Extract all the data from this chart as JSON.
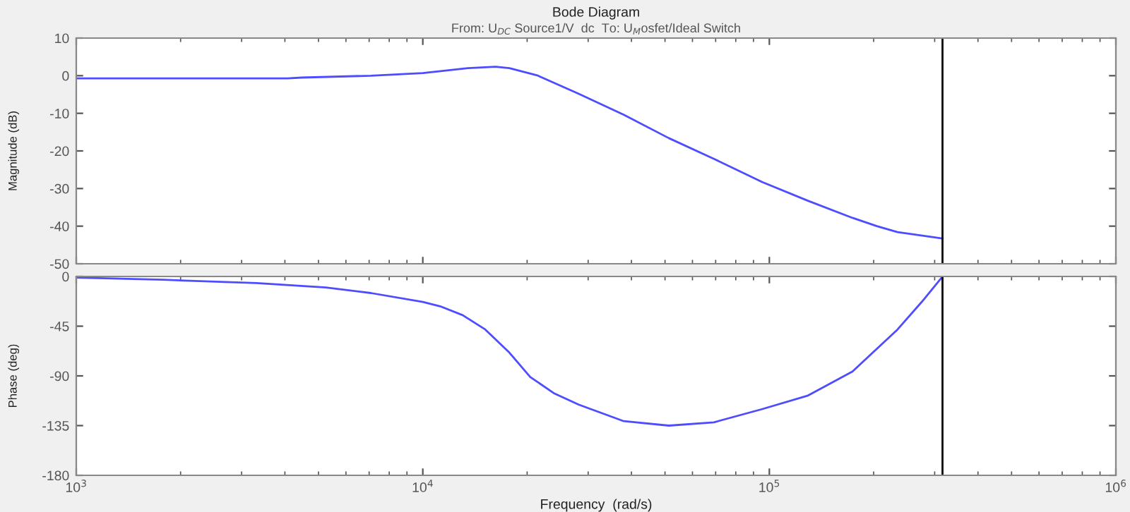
{
  "chart_data": [
    {
      "type": "line",
      "title": "Bode Diagram",
      "subtitle": "From: U$_{DC}$ Source1/V  dc  To: U$_{M}$osfet/Ideal Switch",
      "ylabel": "Magnitude (dB)",
      "series": [
        {
          "color": "#4d4dff",
          "x": [
            1000,
            4074,
            4467,
            7079,
            10000,
            13490,
            16220,
            17780,
            21380,
            28180,
            38020,
            51290,
            69180,
            95500,
            128800,
            173800,
            204200,
            234400,
            316200
          ],
          "values": [
            -0.7,
            -0.7,
            -0.5,
            0,
            0.7,
            2.0,
            2.4,
            2.0,
            0.1,
            -4.8,
            -10.4,
            -16.6,
            -22.1,
            -28.3,
            -33.2,
            -37.8,
            -40,
            -41.6,
            -43.3
          ]
        }
      ],
      "log": "x",
      "xlim": [
        1000,
        1000000
      ],
      "xticks": [
        {
          "value": 1000,
          "label": null
        },
        {
          "value": 10000,
          "label": null
        },
        {
          "value": 100000,
          "label": null
        },
        {
          "value": 1000000,
          "label": null
        }
      ],
      "ylim": [
        -50,
        10
      ],
      "yticks": [
        -50,
        -40,
        -30,
        -20,
        -10,
        0,
        10
      ],
      "tick_labels": "y",
      "ref_lines": [
        {
          "axis": "x",
          "value": 316000,
          "color": "#000000"
        }
      ]
    },
    {
      "type": "line",
      "xlabel": "Frequency  (rad/s)",
      "ylabel": "Phase (deg)",
      "series": [
        {
          "color": "#4d4dff",
          "x": [
            1000,
            1778,
            3311,
            5248,
            7079,
            10000,
            11220,
            13030,
            15140,
            17780,
            20420,
            23990,
            28180,
            38020,
            51290,
            69180,
            95500,
            128800,
            173800,
            234400,
            275400,
            316200
          ],
          "values": [
            -1,
            -3,
            -6,
            -10,
            -15,
            -23,
            -27,
            -35,
            -48,
            -69,
            -91,
            -106,
            -116,
            -131,
            -135,
            -132,
            -120,
            -108,
            -86,
            -48,
            -23,
            0
          ]
        }
      ],
      "log": "x",
      "xlim": [
        1000,
        1000000
      ],
      "xticks": [
        {
          "value": 1000,
          "label": "10$^{3}$"
        },
        {
          "value": 10000,
          "label": "10$^{4}$"
        },
        {
          "value": 100000,
          "label": "10$^{5}$"
        },
        {
          "value": 1000000,
          "label": "10$^{6}$"
        }
      ],
      "ylim": [
        -180,
        0
      ],
      "yticks": [
        -180,
        -135,
        -90,
        -45,
        0
      ],
      "ref_lines": [
        {
          "axis": "x",
          "value": 316000,
          "color": "#000000"
        }
      ]
    }
  ]
}
